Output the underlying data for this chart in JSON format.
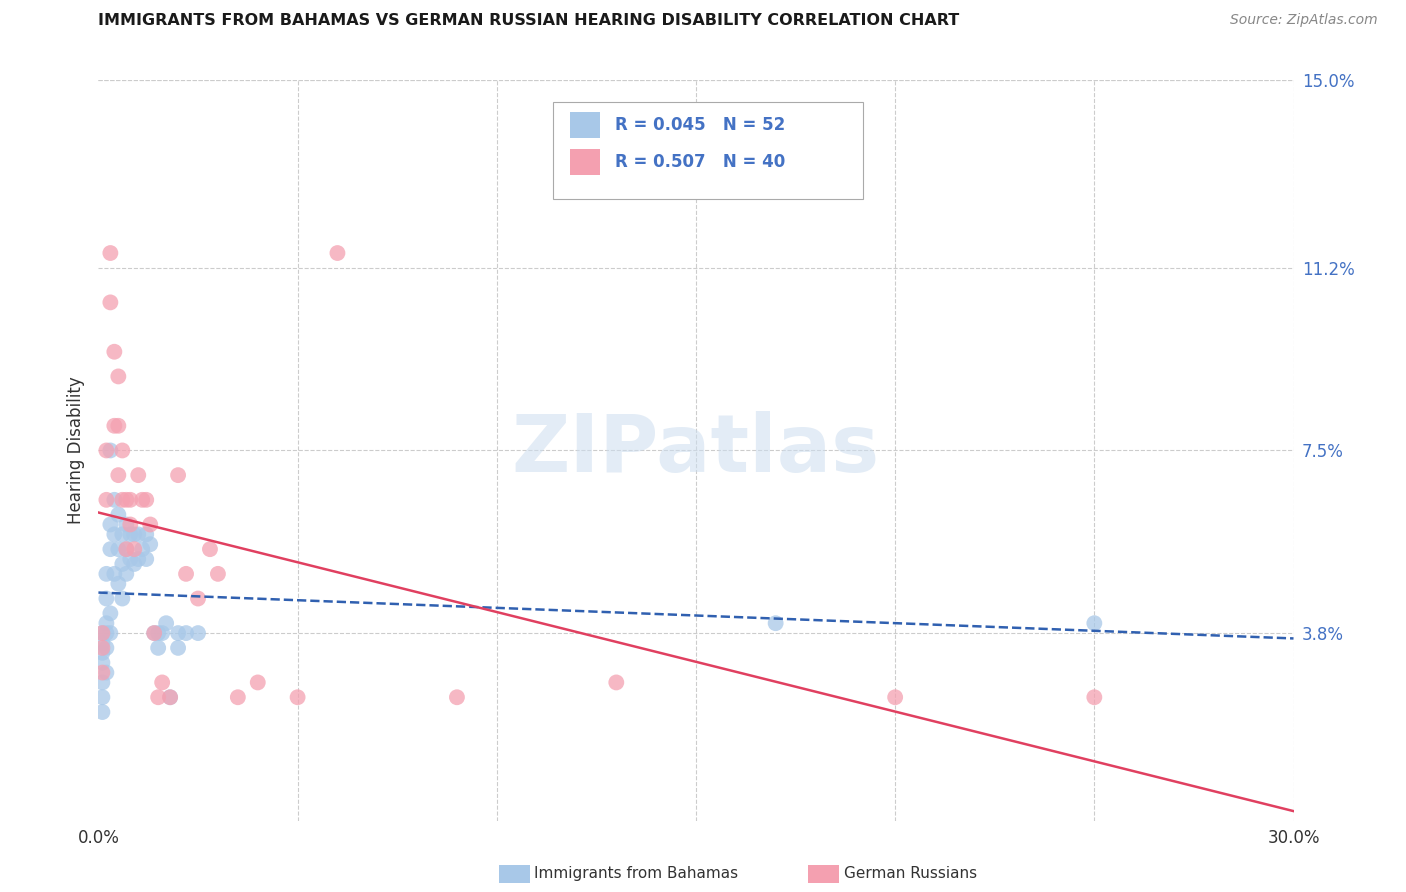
{
  "title": "IMMIGRANTS FROM BAHAMAS VS GERMAN RUSSIAN HEARING DISABILITY CORRELATION CHART",
  "source": "Source: ZipAtlas.com",
  "ylabel": "Hearing Disability",
  "xlim": [
    0.0,
    0.3
  ],
  "ylim": [
    0.0,
    0.15
  ],
  "ytick_vals": [
    0.038,
    0.075,
    0.112,
    0.15
  ],
  "ytick_labels": [
    "3.8%",
    "7.5%",
    "11.2%",
    "15.0%"
  ],
  "watermark": "ZIPatlas",
  "series_blue": {
    "name": "Immigrants from Bahamas",
    "R": 0.045,
    "N": 52,
    "dot_color": "#a8c8e8",
    "line_color": "#3060b0",
    "x": [
      0.001,
      0.001,
      0.001,
      0.001,
      0.001,
      0.001,
      0.001,
      0.002,
      0.002,
      0.002,
      0.002,
      0.002,
      0.002,
      0.003,
      0.003,
      0.003,
      0.003,
      0.003,
      0.004,
      0.004,
      0.004,
      0.005,
      0.005,
      0.005,
      0.006,
      0.006,
      0.006,
      0.007,
      0.007,
      0.007,
      0.008,
      0.008,
      0.009,
      0.009,
      0.01,
      0.01,
      0.011,
      0.012,
      0.012,
      0.013,
      0.014,
      0.015,
      0.015,
      0.016,
      0.017,
      0.018,
      0.02,
      0.02,
      0.022,
      0.025,
      0.17,
      0.25
    ],
    "y": [
      0.038,
      0.036,
      0.034,
      0.032,
      0.028,
      0.025,
      0.022,
      0.05,
      0.045,
      0.04,
      0.038,
      0.035,
      0.03,
      0.075,
      0.06,
      0.055,
      0.042,
      0.038,
      0.065,
      0.058,
      0.05,
      0.062,
      0.055,
      0.048,
      0.058,
      0.052,
      0.045,
      0.06,
      0.055,
      0.05,
      0.058,
      0.053,
      0.058,
      0.052,
      0.058,
      0.053,
      0.055,
      0.058,
      0.053,
      0.056,
      0.038,
      0.038,
      0.035,
      0.038,
      0.04,
      0.025,
      0.038,
      0.035,
      0.038,
      0.038,
      0.04,
      0.04
    ]
  },
  "series_pink": {
    "name": "German Russians",
    "R": 0.507,
    "N": 40,
    "dot_color": "#f4a0b0",
    "line_color": "#e04060",
    "x": [
      0.001,
      0.001,
      0.001,
      0.002,
      0.002,
      0.003,
      0.003,
      0.004,
      0.004,
      0.005,
      0.005,
      0.005,
      0.006,
      0.006,
      0.007,
      0.007,
      0.008,
      0.008,
      0.009,
      0.01,
      0.011,
      0.012,
      0.013,
      0.014,
      0.015,
      0.016,
      0.018,
      0.02,
      0.022,
      0.025,
      0.028,
      0.03,
      0.035,
      0.04,
      0.05,
      0.06,
      0.09,
      0.13,
      0.2,
      0.25
    ],
    "y": [
      0.038,
      0.035,
      0.03,
      0.075,
      0.065,
      0.115,
      0.105,
      0.095,
      0.08,
      0.09,
      0.08,
      0.07,
      0.075,
      0.065,
      0.065,
      0.055,
      0.065,
      0.06,
      0.055,
      0.07,
      0.065,
      0.065,
      0.06,
      0.038,
      0.025,
      0.028,
      0.025,
      0.07,
      0.05,
      0.045,
      0.055,
      0.05,
      0.025,
      0.028,
      0.025,
      0.115,
      0.025,
      0.028,
      0.025,
      0.025
    ]
  },
  "legend_blue_label": "R = 0.045   N = 52",
  "legend_pink_label": "R = 0.507   N = 40",
  "bottom_label1": "Immigrants from Bahamas",
  "bottom_label2": "German Russians",
  "background_color": "#ffffff",
  "grid_color": "#cccccc",
  "title_color": "#1a1a1a",
  "ytick_color": "#4472c4",
  "source_color": "#888888"
}
